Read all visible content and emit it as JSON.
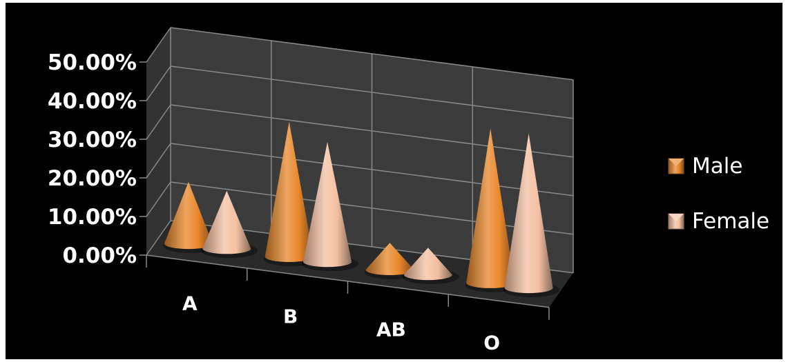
{
  "chart_data": {
    "type": "bar",
    "style": "3d-cone",
    "categories": [
      "A",
      "B",
      "AB",
      "O"
    ],
    "series": [
      {
        "name": "Male",
        "values": [
          16,
          35,
          7,
          40
        ],
        "color": "#e8872a"
      },
      {
        "name": "Female",
        "values": [
          15,
          31,
          7,
          40
        ],
        "color": "#f4c0a2"
      }
    ],
    "ylim": [
      0,
      50
    ],
    "yticks": [
      "0.00%",
      "10.00%",
      "20.00%",
      "30.00%",
      "40.00%",
      "50.00%"
    ],
    "grid": true,
    "legend_position": "right",
    "background": "#000000",
    "wall_color": "#3c3c3c",
    "floor_color": "#2a2a2a",
    "grid_color": "#8a8a8a",
    "text_color": "#ffffff"
  }
}
